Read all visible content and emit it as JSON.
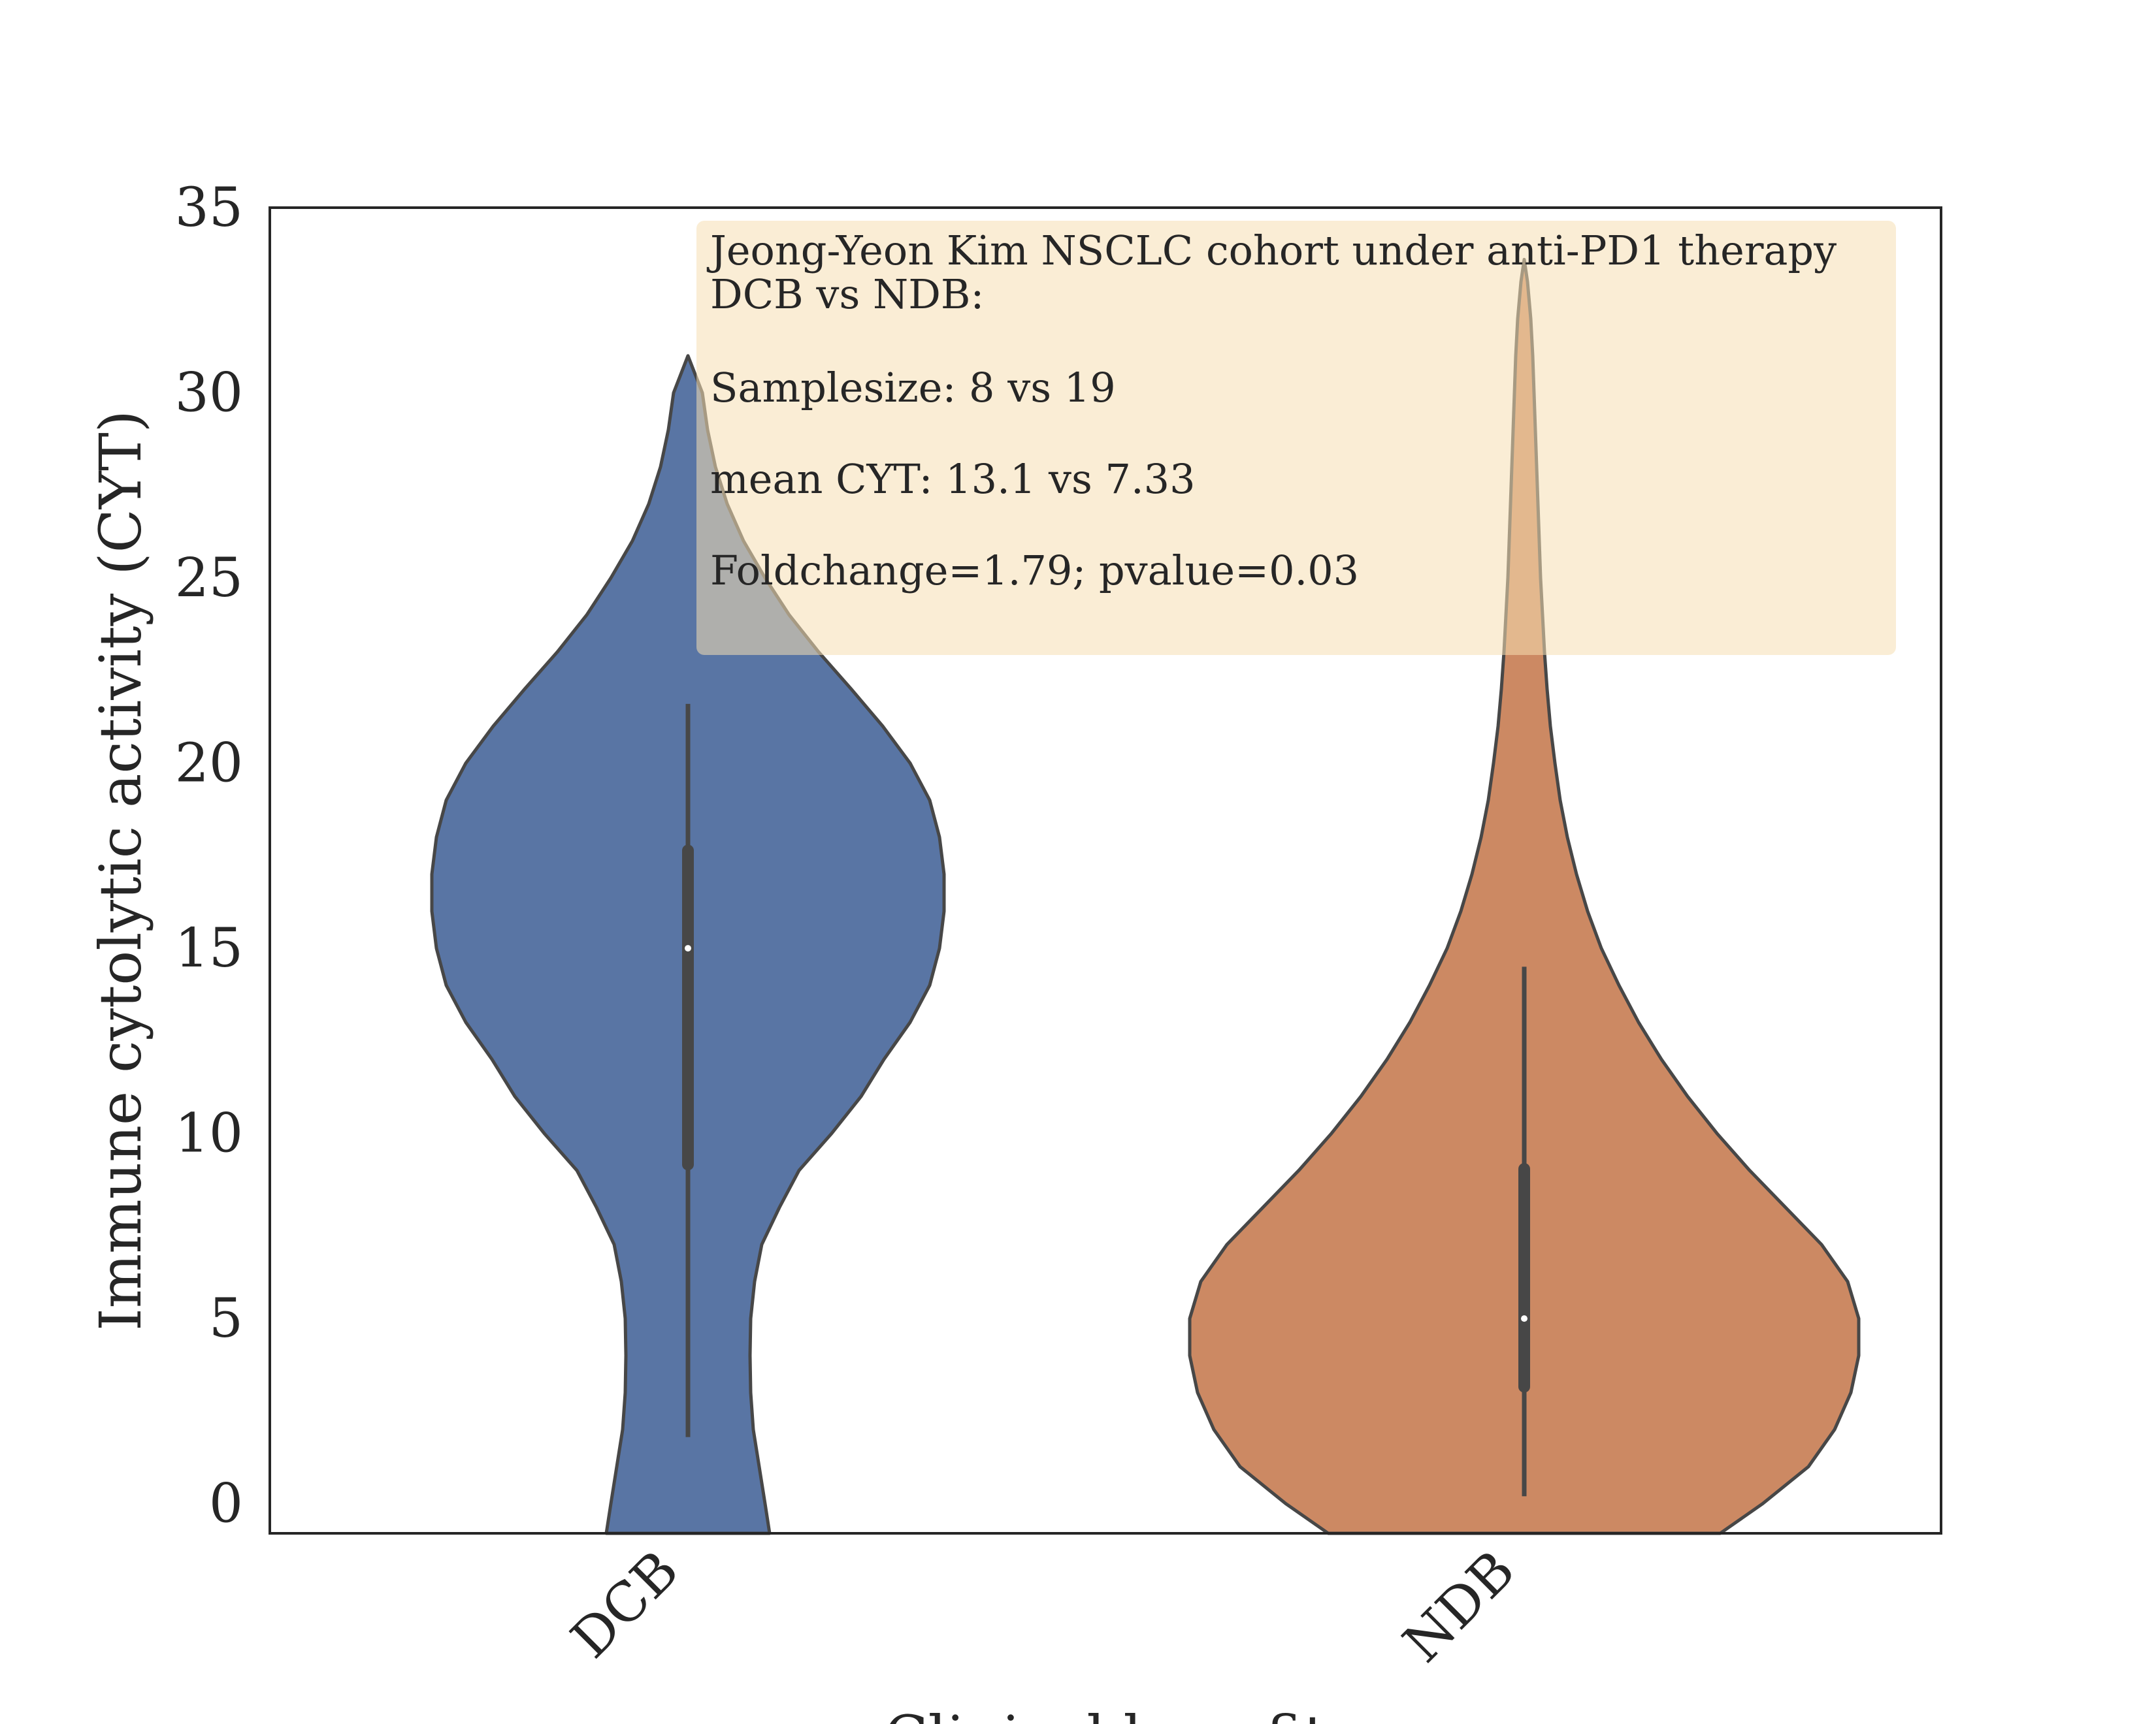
{
  "chart_data": {
    "type": "violin",
    "categories": [
      "DCB",
      "NDB"
    ],
    "xlabel": "Clinical benefit",
    "ylabel": "Immune cytolytic activity (CYT)",
    "ylim": [
      -0.8,
      35
    ],
    "yticks": [
      0,
      5,
      10,
      15,
      20,
      25,
      30,
      35
    ],
    "grid": false,
    "colors": {
      "DCB": "#5975a4",
      "NDB": "#cc8963",
      "box": "#474747",
      "median": "#ffffff",
      "annotation_bg": "#f5deb3"
    },
    "series": [
      {
        "name": "DCB",
        "whisker": [
          1.8,
          21.6
        ],
        "box": [
          9.0,
          17.8
        ],
        "median": 15.0,
        "violin_max": 31.0,
        "violin_min_visible": -0.8,
        "violin_max_halfwidth_at": 16.8
      },
      {
        "name": "NDB",
        "whisker": [
          0.2,
          14.5
        ],
        "box": [
          3.0,
          9.2
        ],
        "median": 5.0,
        "violin_max": 33.6,
        "violin_min_visible": -0.8,
        "violin_max_halfwidth_at": 4.5
      }
    ],
    "annotation": {
      "lines": [
        "Jeong-Yeon Kim NSCLC cohort under anti-PD1 therapy",
        "DCB vs NDB:",
        "",
        "Samplesize: 8 vs 19",
        "",
        "mean CYT: 13.1 vs 7.33",
        "",
        "Foldchange=1.79; pvalue=0.03"
      ]
    }
  }
}
